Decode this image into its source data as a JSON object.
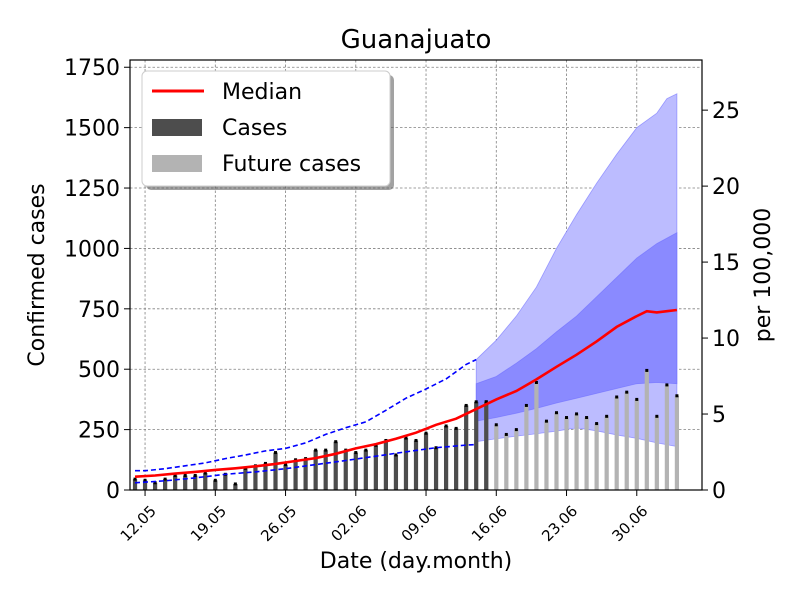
{
  "chart_data": {
    "type": "bar",
    "title": "Guanajuato",
    "xlabel": "Date (day.month)",
    "ylabel": "Confirmed cases",
    "ylabel_right": "per 100,000",
    "ylim": [
      0,
      1780
    ],
    "ylim_right": [
      0,
      28.3
    ],
    "y_ticks": [
      0,
      250,
      500,
      750,
      1000,
      1250,
      1500,
      1750
    ],
    "y_tick_labels": [
      "0",
      "250",
      "500",
      "750",
      "1000",
      "1250",
      "1500",
      "1750"
    ],
    "y_right_ticks": [
      0,
      5,
      10,
      15,
      20,
      25
    ],
    "y_right_tick_labels": [
      "0",
      "5",
      "10",
      "15",
      "20",
      "25"
    ],
    "x_ticks": [
      1,
      8,
      15,
      22,
      29,
      36,
      43,
      50
    ],
    "x_tick_labels": [
      "12.05",
      "19.05",
      "26.05",
      "02.06",
      "09.06",
      "16.06",
      "23.06",
      "30.06"
    ],
    "x_range": [
      -0.5,
      56.5
    ],
    "grid": true,
    "legend": {
      "position": "top-left",
      "entries": [
        {
          "label": "Median",
          "kind": "line"
        },
        {
          "label": "Cases",
          "kind": "bar-dark"
        },
        {
          "label": "Future cases",
          "kind": "bar-light"
        }
      ]
    },
    "colors": {
      "cases": "#4d4d4d",
      "future_cases": "#b3b3b3",
      "median": "#ff0000",
      "past_ci": "#0000ff",
      "band_inner": "#8a8aff",
      "band_outer": "#bcbcff"
    },
    "cases": {
      "x": [
        0,
        1,
        2,
        3,
        4,
        5,
        6,
        7,
        8,
        9,
        10,
        11,
        12,
        13,
        14,
        15,
        16,
        17,
        18,
        19,
        20,
        21,
        22,
        23,
        24,
        25,
        26,
        27,
        28,
        29,
        30,
        31,
        32,
        33,
        34,
        35
      ],
      "values": [
        45,
        40,
        30,
        45,
        60,
        60,
        60,
        70,
        40,
        65,
        25,
        90,
        100,
        110,
        155,
        105,
        125,
        130,
        165,
        165,
        200,
        165,
        155,
        165,
        185,
        205,
        145,
        215,
        205,
        235,
        175,
        265,
        255,
        350,
        365,
        365
      ]
    },
    "future_cases": {
      "x": [
        35,
        36,
        37,
        38,
        39,
        40,
        41,
        42,
        43,
        44,
        45,
        46,
        47,
        48,
        49,
        50,
        51,
        52,
        53,
        54
      ],
      "values": [
        365,
        270,
        230,
        250,
        350,
        445,
        285,
        320,
        300,
        315,
        300,
        275,
        305,
        385,
        405,
        375,
        495,
        305,
        435,
        390
      ]
    },
    "median": {
      "x": [
        0,
        2,
        4,
        6,
        8,
        10,
        12,
        14,
        16,
        18,
        20,
        22,
        24,
        26,
        28,
        30,
        32,
        34,
        36,
        38,
        40,
        42,
        44,
        46,
        48,
        50,
        51,
        52,
        53,
        54
      ],
      "values": [
        55,
        60,
        68,
        75,
        83,
        90,
        98,
        108,
        120,
        132,
        150,
        172,
        190,
        212,
        237,
        270,
        295,
        335,
        375,
        410,
        458,
        510,
        560,
        615,
        675,
        720,
        740,
        735,
        740,
        745
      ]
    },
    "ci_upper_past": {
      "x": [
        0,
        1,
        3,
        5,
        7,
        9,
        11,
        13,
        15,
        17,
        19,
        21,
        23,
        25,
        27,
        29,
        31,
        33,
        34
      ],
      "values": [
        80,
        80,
        88,
        100,
        112,
        130,
        145,
        162,
        172,
        195,
        230,
        258,
        282,
        330,
        380,
        418,
        460,
        520,
        540
      ]
    },
    "ci_lower_past": {
      "x": [
        0,
        3,
        6,
        9,
        12,
        15,
        18,
        21,
        24,
        27,
        30,
        33,
        34
      ],
      "values": [
        30,
        38,
        50,
        65,
        75,
        88,
        105,
        122,
        140,
        158,
        175,
        186,
        188
      ]
    },
    "band_outer_upper": {
      "x": [
        34,
        36,
        38,
        40,
        42,
        44,
        46,
        48,
        50,
        52,
        53,
        54
      ],
      "values": [
        540,
        620,
        720,
        840,
        1000,
        1140,
        1270,
        1390,
        1500,
        1560,
        1620,
        1640
      ]
    },
    "band_outer_lower": {
      "x": [
        34,
        36,
        38,
        40,
        42,
        44,
        46,
        48,
        50,
        52,
        54
      ],
      "values": [
        200,
        212,
        223,
        233,
        244,
        257,
        245,
        228,
        214,
        195,
        180
      ]
    },
    "band_inner_upper": {
      "x": [
        34,
        36,
        38,
        40,
        42,
        44,
        46,
        48,
        50,
        52,
        54
      ],
      "values": [
        440,
        470,
        525,
        585,
        655,
        720,
        800,
        880,
        960,
        1020,
        1065
      ]
    },
    "band_inner_lower": {
      "x": [
        34,
        36,
        38,
        40,
        42,
        44,
        46,
        48,
        50,
        52,
        54
      ],
      "values": [
        285,
        300,
        318,
        338,
        360,
        380,
        400,
        420,
        440,
        445,
        440
      ]
    }
  }
}
